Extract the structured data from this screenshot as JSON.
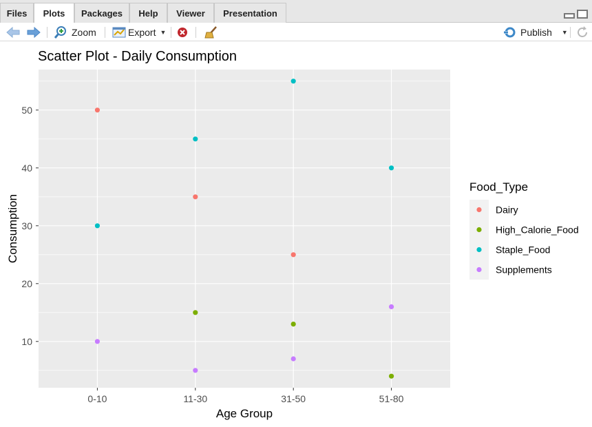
{
  "tabs": [
    {
      "label": "Files",
      "active": false
    },
    {
      "label": "Plots",
      "active": true
    },
    {
      "label": "Packages",
      "active": false
    },
    {
      "label": "Help",
      "active": false
    },
    {
      "label": "Viewer",
      "active": false
    },
    {
      "label": "Presentation",
      "active": false
    }
  ],
  "toolbar": {
    "zoom_label": "Zoom",
    "export_label": "Export",
    "publish_label": "Publish"
  },
  "colors": {
    "Dairy": "#F8766D",
    "High_Calorie_Food": "#7CAE00",
    "Staple_Food": "#00BFC4",
    "Supplements": "#C77CFF",
    "panel_bg": "#EBEBEB",
    "grid": "#FFFFFF",
    "accent": "#4a90c8"
  },
  "icons": [
    "back-arrow-icon",
    "forward-arrow-icon",
    "zoom-icon",
    "export-icon",
    "remove-plot-icon",
    "broom-icon",
    "publish-icon",
    "refresh-icon"
  ],
  "chart_data": {
    "type": "scatter",
    "title": "Scatter Plot - Daily Consumption",
    "xlabel": "Age Group",
    "ylabel": "Consumption",
    "categories": [
      "0-10",
      "11-30",
      "31-50",
      "51-80"
    ],
    "ylim": [
      2,
      57
    ],
    "yticks": [
      10,
      20,
      30,
      40,
      50
    ],
    "grid": true,
    "legend_title": "Food_Type",
    "legend_position": "right",
    "series": [
      {
        "name": "Dairy",
        "values": [
          50,
          35,
          25,
          null
        ]
      },
      {
        "name": "High_Calorie_Food",
        "values": [
          null,
          15,
          13,
          4
        ]
      },
      {
        "name": "Staple_Food",
        "values": [
          30,
          45,
          55,
          40
        ]
      },
      {
        "name": "Supplements",
        "values": [
          10,
          5,
          7,
          16
        ]
      }
    ]
  }
}
